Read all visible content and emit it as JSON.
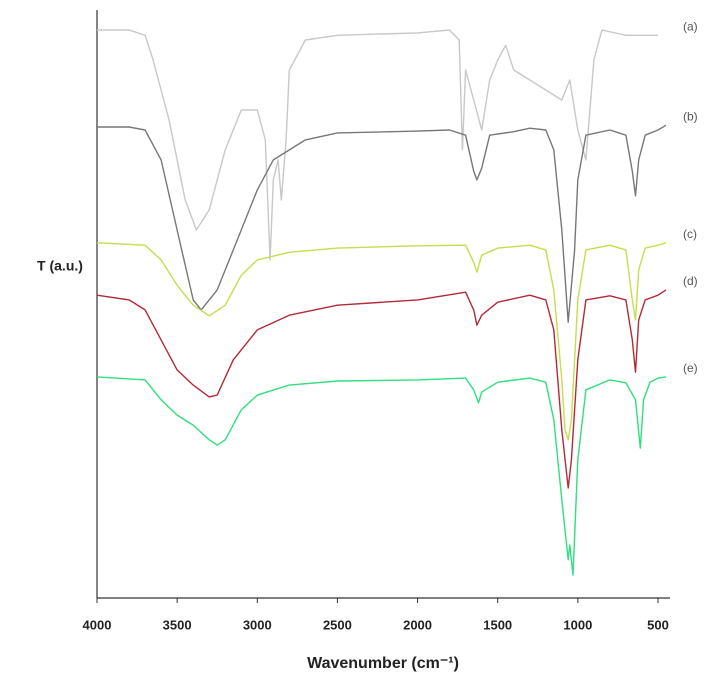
{
  "chart_data": {
    "type": "line",
    "x_label": "Wavenumber (cm⁻¹)",
    "y_label": "T (a.u.)",
    "xlim": [
      4000,
      425
    ],
    "ylim": [
      0,
      100
    ],
    "xticks": [
      4000,
      3500,
      3000,
      2500,
      2000,
      1500,
      1000,
      500
    ],
    "series": [
      {
        "name": "(a)",
        "color": "#c8c8c8",
        "x": [
          4000,
          3800,
          3700,
          3650,
          3550,
          3450,
          3380,
          3300,
          3200,
          3100,
          3000,
          2950,
          2920,
          2900,
          2870,
          2850,
          2820,
          2800,
          2700,
          2500,
          2000,
          1800,
          1740,
          1720,
          1700,
          1650,
          1600,
          1550,
          1500,
          1450,
          1400,
          1300,
          1200,
          1100,
          1050,
          1000,
          950,
          900,
          850,
          700,
          500
        ],
        "values": [
          96.6,
          96.6,
          95.7,
          91.5,
          81.3,
          67.7,
          62.6,
          66.0,
          76.2,
          83.0,
          83.0,
          77.9,
          57.5,
          71.1,
          74.5,
          67.7,
          77.9,
          89.8,
          94.9,
          95.7,
          96.1,
          96.6,
          94.9,
          76.2,
          89.8,
          84.7,
          79.6,
          88.1,
          91.5,
          94.0,
          89.8,
          88.1,
          86.4,
          84.7,
          88.1,
          79.6,
          74.5,
          91.5,
          96.6,
          95.7,
          95.7
        ]
      },
      {
        "name": "(b)",
        "color": "#777777",
        "x": [
          4000,
          3800,
          3700,
          3600,
          3500,
          3400,
          3350,
          3250,
          3100,
          3000,
          2900,
          2700,
          2500,
          2000,
          1800,
          1700,
          1650,
          1630,
          1600,
          1550,
          1400,
          1300,
          1200,
          1150,
          1100,
          1060,
          1020,
          1000,
          950,
          800,
          700,
          660,
          640,
          620,
          580,
          500,
          450
        ],
        "values": [
          80.1,
          80.1,
          79.6,
          74.5,
          62.6,
          50.7,
          49.0,
          52.4,
          62.6,
          69.4,
          74.5,
          77.9,
          79.1,
          79.4,
          79.6,
          78.7,
          72.6,
          71.1,
          73.1,
          78.7,
          79.3,
          79.9,
          79.6,
          76.2,
          62.6,
          46.9,
          59.2,
          71.1,
          78.7,
          79.6,
          78.7,
          72.6,
          68.4,
          74.5,
          78.7,
          79.6,
          80.4
        ]
      },
      {
        "name": "(c)",
        "color": "#c9dc4c",
        "x": [
          4000,
          3700,
          3600,
          3500,
          3400,
          3300,
          3200,
          3100,
          3000,
          2800,
          2500,
          2000,
          1700,
          1650,
          1630,
          1600,
          1500,
          1300,
          1200,
          1150,
          1100,
          1080,
          1060,
          1040,
          1000,
          950,
          800,
          700,
          660,
          640,
          620,
          580,
          500,
          450
        ],
        "values": [
          60.4,
          60.0,
          57.5,
          53.2,
          49.8,
          48.0,
          49.8,
          54.9,
          57.5,
          58.8,
          59.5,
          59.9,
          60.0,
          57.1,
          55.4,
          58.3,
          59.5,
          60.0,
          59.2,
          52.4,
          37.1,
          28.6,
          26.9,
          30.3,
          50.7,
          59.2,
          60.0,
          59.2,
          50.7,
          47.3,
          55.8,
          59.5,
          60.0,
          60.4
        ]
      },
      {
        "name": "(d)",
        "color": "#b32a37",
        "x": [
          4000,
          3800,
          3700,
          3600,
          3500,
          3400,
          3300,
          3250,
          3150,
          3000,
          2800,
          2500,
          2000,
          1700,
          1650,
          1630,
          1600,
          1500,
          1300,
          1200,
          1150,
          1100,
          1060,
          1040,
          1000,
          950,
          800,
          700,
          660,
          640,
          620,
          580,
          500,
          450
        ],
        "values": [
          51.5,
          50.7,
          49.0,
          43.9,
          38.8,
          36.2,
          34.2,
          34.5,
          40.5,
          45.6,
          48.1,
          49.8,
          50.7,
          52.0,
          49.0,
          46.4,
          48.1,
          50.3,
          51.5,
          50.7,
          45.6,
          28.6,
          18.7,
          23.5,
          40.5,
          50.7,
          51.4,
          50.7,
          43.9,
          38.4,
          47.3,
          50.7,
          51.5,
          52.4
        ]
      },
      {
        "name": "(e)",
        "color": "#2fe07c",
        "x": [
          4000,
          3700,
          3600,
          3500,
          3400,
          3300,
          3250,
          3200,
          3100,
          3000,
          2800,
          2500,
          2000,
          1700,
          1650,
          1620,
          1600,
          1500,
          1300,
          1200,
          1150,
          1100,
          1060,
          1050,
          1030,
          1000,
          950,
          800,
          700,
          640,
          610,
          590,
          550,
          500,
          450
        ],
        "values": [
          37.6,
          37.1,
          33.7,
          31.1,
          29.4,
          26.9,
          26.0,
          26.9,
          32.0,
          34.5,
          36.2,
          36.9,
          37.1,
          37.4,
          35.4,
          33.2,
          35.0,
          36.7,
          37.4,
          36.7,
          30.3,
          16.7,
          6.5,
          9.0,
          3.9,
          23.5,
          35.4,
          37.1,
          36.6,
          33.7,
          25.5,
          33.7,
          36.7,
          37.4,
          37.6
        ]
      }
    ]
  }
}
